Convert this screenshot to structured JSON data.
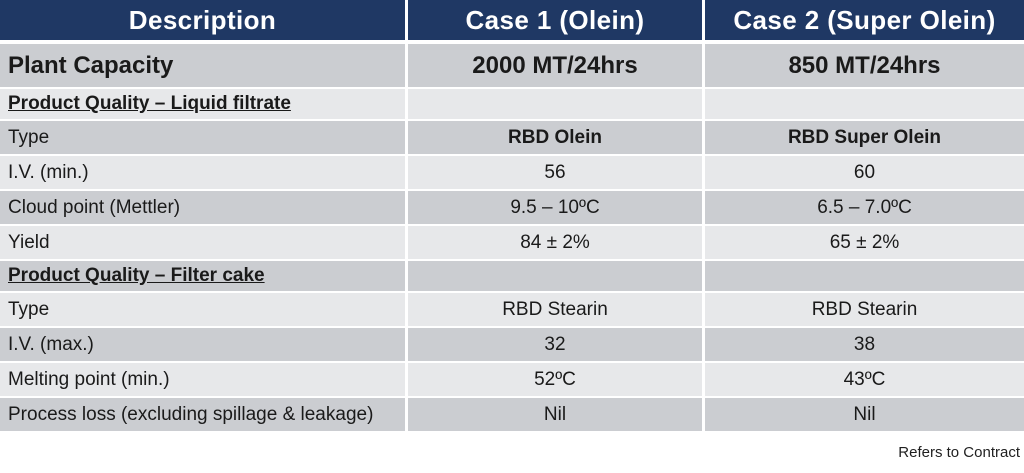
{
  "table": {
    "header": {
      "col1": "Description",
      "col2": "Case 1 (Olein)",
      "col3": "Case 2 (Super Olein)"
    },
    "rows": [
      {
        "type": "capacity",
        "label": "Plant Capacity",
        "case1": "2000 MT/24hrs",
        "case2": "850 MT/24hrs"
      },
      {
        "type": "section",
        "label": "Product Quality – Liquid filtrate",
        "case1": "",
        "case2": ""
      },
      {
        "type": "data-bold",
        "label": "Type",
        "case1": "RBD Olein",
        "case2": "RBD Super Olein"
      },
      {
        "type": "data",
        "label": "I.V. (min.)",
        "case1": "56",
        "case2": "60"
      },
      {
        "type": "data",
        "label": "Cloud point (Mettler)",
        "case1": "9.5 – 10ºC",
        "case2": "6.5 – 7.0ºC"
      },
      {
        "type": "data",
        "label": "Yield",
        "case1": "84 ± 2%",
        "case2": "65 ± 2%"
      },
      {
        "type": "section",
        "label": "Product Quality – Filter cake",
        "case1": "",
        "case2": ""
      },
      {
        "type": "data",
        "label": "Type",
        "case1": "RBD Stearin",
        "case2": "RBD Stearin"
      },
      {
        "type": "data",
        "label": "I.V. (max.)",
        "case1": "32",
        "case2": "38"
      },
      {
        "type": "data",
        "label": "Melting point (min.)",
        "case1": "52ºC",
        "case2": "43ºC"
      },
      {
        "type": "data",
        "label": "Process loss (excluding spillage & leakage)",
        "case1": "Nil",
        "case2": "Nil"
      }
    ],
    "footer_note": "Refers to Contract",
    "colors": {
      "header_bg": "#1F3864",
      "header_text": "#FFFFFF",
      "row_dark": "#CBCDD1",
      "row_light": "#E7E8EA",
      "body_text": "#1A1A1A"
    }
  }
}
